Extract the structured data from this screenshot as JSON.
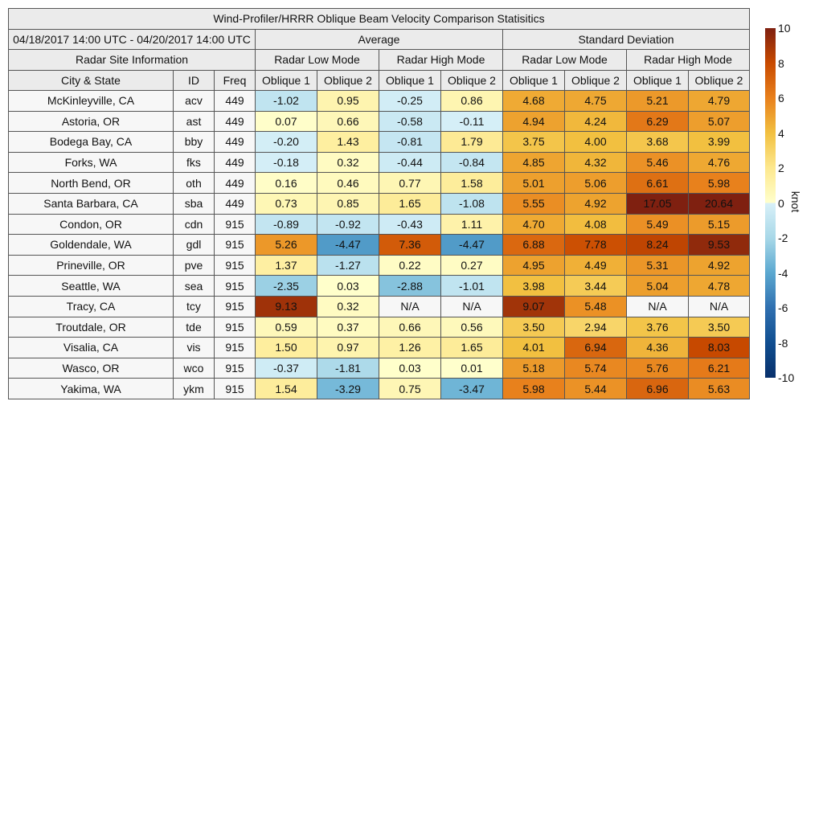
{
  "chart_data": {
    "type": "heatmap",
    "title": "Wind-Profiler/HRRR Oblique Beam Velocity Comparison Statisitics",
    "date_range": "04/18/2017 14:00 UTC - 04/20/2017 14:00 UTC",
    "site_info_header": "Radar Site Information",
    "groups": [
      "Average",
      "Standard Deviation"
    ],
    "modes": [
      "Radar Low Mode",
      "Radar High Mode",
      "Radar Low Mode",
      "Radar High Mode"
    ],
    "columns": [
      "City & State",
      "ID",
      "Freq",
      "Oblique 1",
      "Oblique 2",
      "Oblique 1",
      "Oblique 2",
      "Oblique 1",
      "Oblique 2",
      "Oblique 1",
      "Oblique 2"
    ],
    "rows": [
      {
        "city": "McKinleyville, CA",
        "id": "acv",
        "freq": "449",
        "values": [
          "-1.02",
          "0.95",
          "-0.25",
          "0.86",
          "4.68",
          "4.75",
          "5.21",
          "4.79"
        ]
      },
      {
        "city": "Astoria, OR",
        "id": "ast",
        "freq": "449",
        "values": [
          "0.07",
          "0.66",
          "-0.58",
          "-0.11",
          "4.94",
          "4.24",
          "6.29",
          "5.07"
        ]
      },
      {
        "city": "Bodega Bay, CA",
        "id": "bby",
        "freq": "449",
        "values": [
          "-0.20",
          "1.43",
          "-0.81",
          "1.79",
          "3.75",
          "4.00",
          "3.68",
          "3.99"
        ]
      },
      {
        "city": "Forks, WA",
        "id": "fks",
        "freq": "449",
        "values": [
          "-0.18",
          "0.32",
          "-0.44",
          "-0.84",
          "4.85",
          "4.32",
          "5.46",
          "4.76"
        ]
      },
      {
        "city": "North Bend, OR",
        "id": "oth",
        "freq": "449",
        "values": [
          "0.16",
          "0.46",
          "0.77",
          "1.58",
          "5.01",
          "5.06",
          "6.61",
          "5.98"
        ]
      },
      {
        "city": "Santa Barbara, CA",
        "id": "sba",
        "freq": "449",
        "values": [
          "0.73",
          "0.85",
          "1.65",
          "-1.08",
          "5.55",
          "4.92",
          "17.05",
          "20.64"
        ]
      },
      {
        "city": "Condon, OR",
        "id": "cdn",
        "freq": "915",
        "values": [
          "-0.89",
          "-0.92",
          "-0.43",
          "1.11",
          "4.70",
          "4.08",
          "5.49",
          "5.15"
        ]
      },
      {
        "city": "Goldendale, WA",
        "id": "gdl",
        "freq": "915",
        "values": [
          "5.26",
          "-4.47",
          "7.36",
          "-4.47",
          "6.88",
          "7.78",
          "8.24",
          "9.53"
        ]
      },
      {
        "city": "Prineville, OR",
        "id": "pve",
        "freq": "915",
        "values": [
          "1.37",
          "-1.27",
          "0.22",
          "0.27",
          "4.95",
          "4.49",
          "5.31",
          "4.92"
        ]
      },
      {
        "city": "Seattle, WA",
        "id": "sea",
        "freq": "915",
        "values": [
          "-2.35",
          "0.03",
          "-2.88",
          "-1.01",
          "3.98",
          "3.44",
          "5.04",
          "4.78"
        ]
      },
      {
        "city": "Tracy, CA",
        "id": "tcy",
        "freq": "915",
        "values": [
          "9.13",
          "0.32",
          "N/A",
          "N/A",
          "9.07",
          "5.48",
          "N/A",
          "N/A"
        ]
      },
      {
        "city": "Troutdale, OR",
        "id": "tde",
        "freq": "915",
        "values": [
          "0.59",
          "0.37",
          "0.66",
          "0.56",
          "3.50",
          "2.94",
          "3.76",
          "3.50"
        ]
      },
      {
        "city": "Visalia, CA",
        "id": "vis",
        "freq": "915",
        "values": [
          "1.50",
          "0.97",
          "1.26",
          "1.65",
          "4.01",
          "6.94",
          "4.36",
          "8.03"
        ]
      },
      {
        "city": "Wasco, OR",
        "id": "wco",
        "freq": "915",
        "values": [
          "-0.37",
          "-1.81",
          "0.03",
          "0.01",
          "5.18",
          "5.74",
          "5.76",
          "6.21"
        ]
      },
      {
        "city": "Yakima, WA",
        "id": "ykm",
        "freq": "915",
        "values": [
          "1.54",
          "-3.29",
          "0.75",
          "-3.47",
          "5.98",
          "5.44",
          "6.96",
          "5.63"
        ]
      }
    ],
    "colorbar": {
      "range": [
        -10,
        10
      ],
      "ticks": [
        "10",
        "8",
        "6",
        "4",
        "2",
        "0",
        "-2",
        "-4",
        "-6",
        "-8",
        "-10"
      ],
      "unit": "knot",
      "colors": [
        "#08306b",
        "#104e90",
        "#3070b0",
        "#5ba8d0",
        "#a8d8e8",
        "#d8f0f8",
        "#ffffcc",
        "#fde88e",
        "#f2c040",
        "#e8801c",
        "#c84a00",
        "#7f2010"
      ]
    },
    "na_color": "#f7f7f7"
  }
}
